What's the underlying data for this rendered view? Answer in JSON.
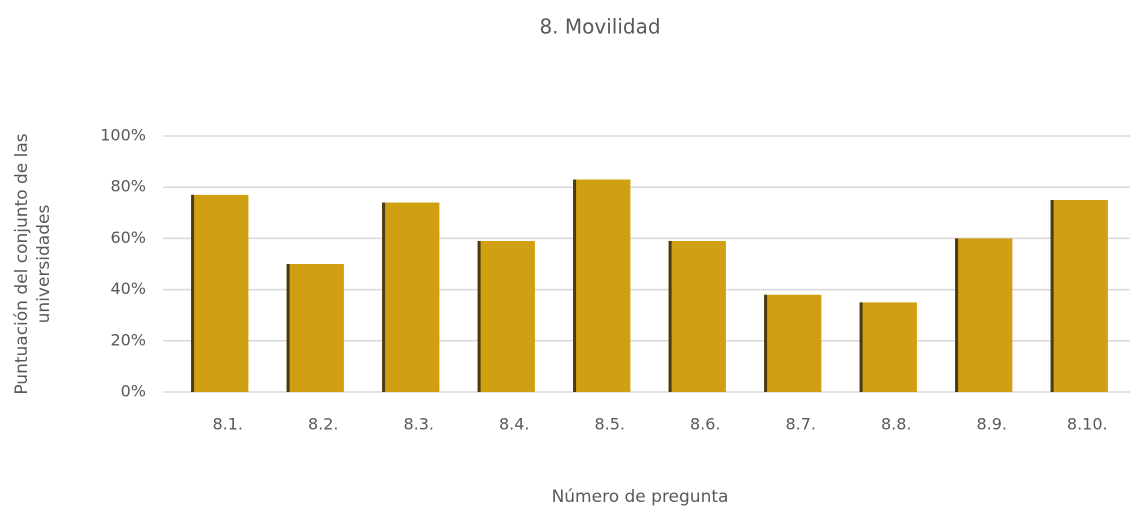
{
  "chart_data": {
    "type": "bar",
    "title": "8. Movilidad",
    "xlabel": "Número de pregunta",
    "ylabel": [
      "Puntuación del conjunto de las",
      "universidades"
    ],
    "categories": [
      "8.1.",
      "8.2.",
      "8.3.",
      "8.4.",
      "8.5.",
      "8.6.",
      "8.7.",
      "8.8.",
      "8.9.",
      "8.10."
    ],
    "values": [
      77,
      50,
      74,
      59,
      83,
      59,
      38,
      35,
      60,
      75
    ],
    "color": "#d1a012",
    "ylim": [
      0,
      100
    ],
    "yticks": [
      {
        "value": 0,
        "label": "0%"
      },
      {
        "value": 20,
        "label": "20%"
      },
      {
        "value": 40,
        "label": "40%"
      },
      {
        "value": 60,
        "label": "60%"
      },
      {
        "value": 80,
        "label": "80%"
      },
      {
        "value": 100,
        "label": "100%"
      }
    ],
    "grid": true
  }
}
